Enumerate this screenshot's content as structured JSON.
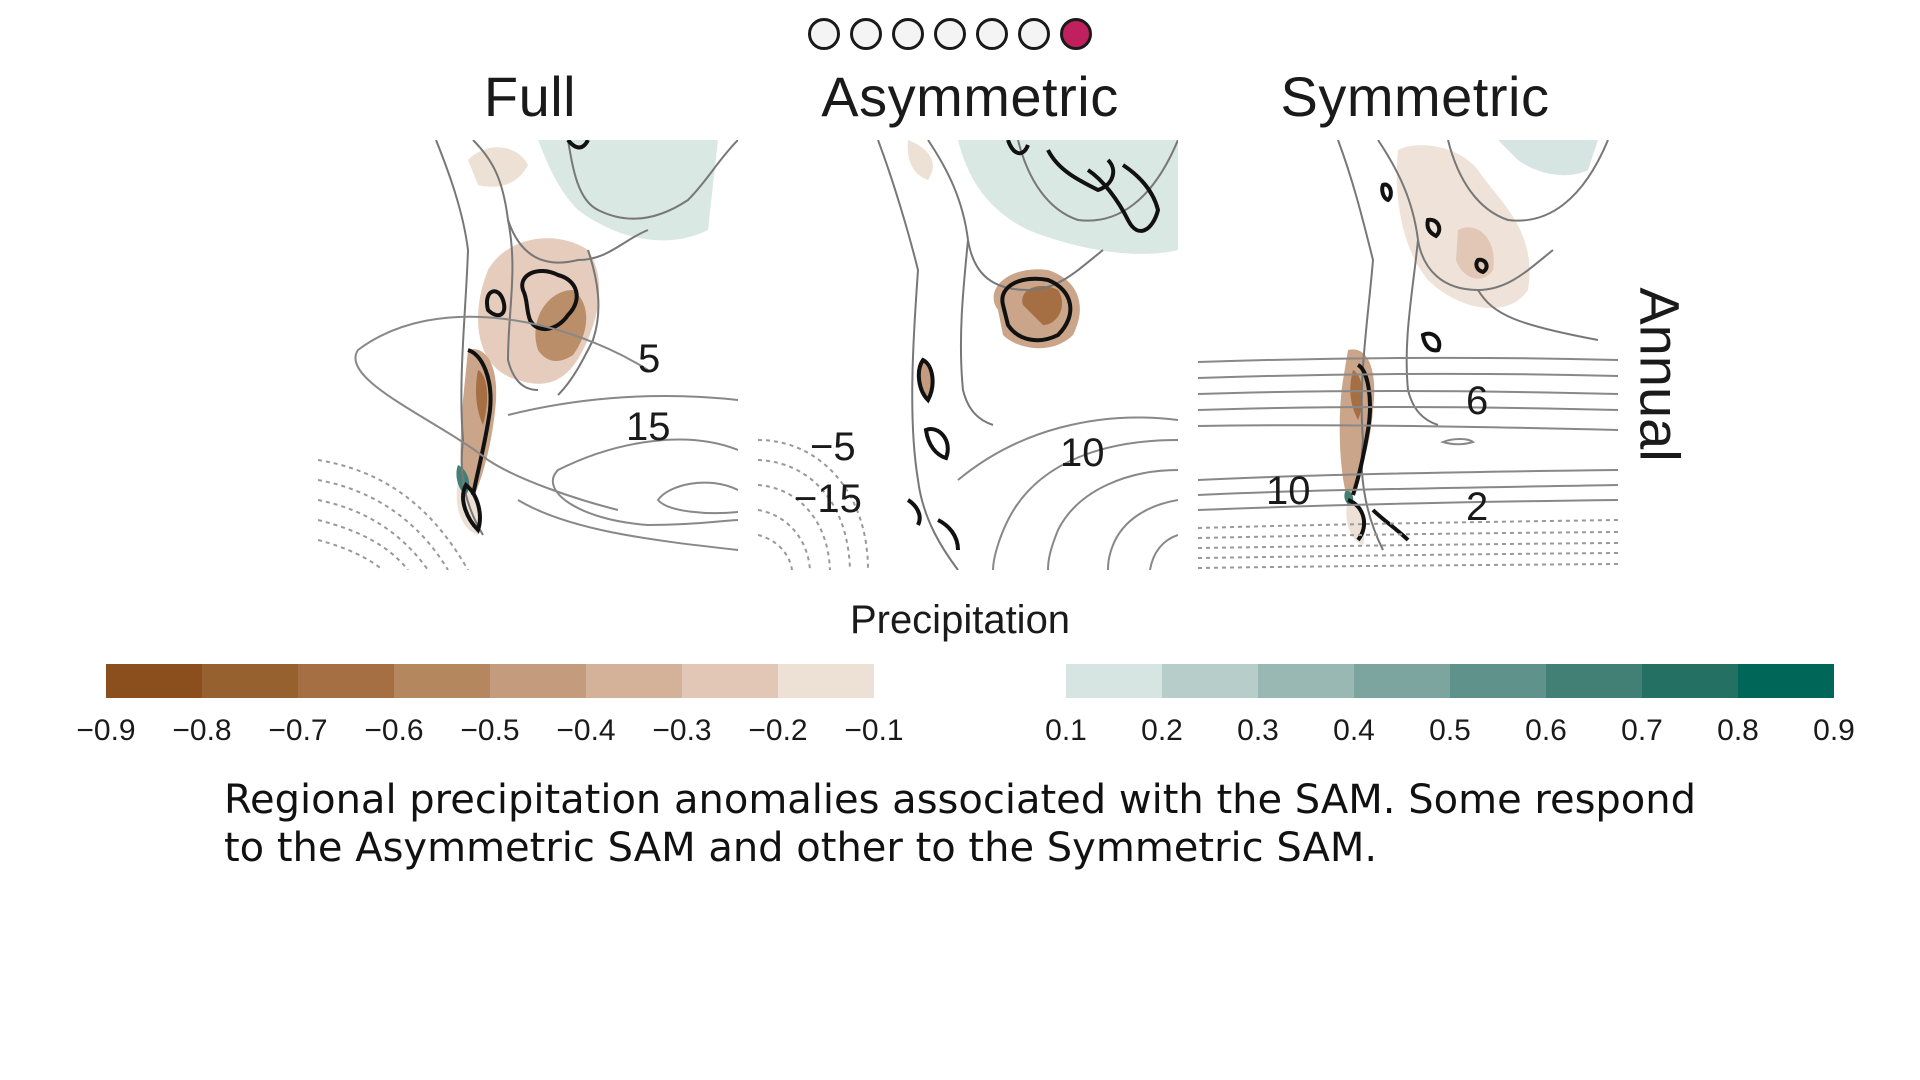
{
  "slides": {
    "count": 7,
    "active_index": 6,
    "dot_names": [
      "slide-dot-1",
      "slide-dot-2",
      "slide-dot-3",
      "slide-dot-4",
      "slide-dot-5",
      "slide-dot-6",
      "slide-dot-7"
    ]
  },
  "panels": [
    {
      "title": "Full",
      "contour_labels": [
        "5",
        "15"
      ]
    },
    {
      "title": "Asymmetric",
      "contour_labels": [
        "−5",
        "−15",
        "10"
      ]
    },
    {
      "title": "Symmetric",
      "contour_labels": [
        "6",
        "10",
        "2"
      ]
    }
  ],
  "row_label": "Annual",
  "legend": {
    "title": "Precipitation",
    "negative_colors": [
      "#8b4f1e",
      "#96602f",
      "#a66f43",
      "#b5875f",
      "#c49b7c",
      "#d4b29a",
      "#e2c7b6",
      "#ede0d5"
    ],
    "positive_colors": [
      "#d6e5e1",
      "#b6cdc9",
      "#99b8b3",
      "#7ca59f",
      "#5f928a",
      "#427f75",
      "#247063",
      "#006658"
    ],
    "negative_ticks": [
      "−0.9",
      "−0.8",
      "−0.7",
      "−0.6",
      "−0.5",
      "−0.4",
      "−0.3",
      "−0.2",
      "−0.1"
    ],
    "positive_ticks": [
      "0.1",
      "0.2",
      "0.3",
      "0.4",
      "0.5",
      "0.6",
      "0.7",
      "0.8",
      "0.9"
    ]
  },
  "caption": {
    "line1": "Regional precipitation anomalies associated with the SAM. Some respond",
    "line2": "to the Asymmetric SAM and other to the Symmetric SAM."
  }
}
